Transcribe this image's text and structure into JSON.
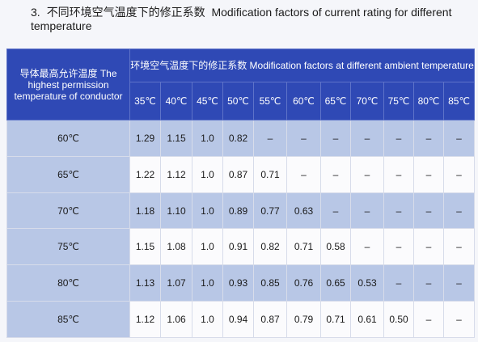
{
  "heading": {
    "number": "3.",
    "zh": "不同环境空气温度下的修正系数",
    "en": "Modification factors of current rating for different temperature"
  },
  "table": {
    "corner_header": "导体最高允许温度 The highest permission temperature of conductor",
    "group_header": "环境空气温度下的修正系数 Modification factors at different ambient temperature",
    "ambient_temps": [
      "35℃",
      "40℃",
      "45℃",
      "50℃",
      "55℃",
      "60℃",
      "65℃",
      "70℃",
      "75℃",
      "80℃",
      "85℃"
    ],
    "rows": [
      {
        "conductor": "60℃",
        "factors": [
          "1.29",
          "1.15",
          "1.0",
          "0.82",
          "–",
          "–",
          "–",
          "–",
          "–",
          "–",
          "–"
        ]
      },
      {
        "conductor": "65℃",
        "factors": [
          "1.22",
          "1.12",
          "1.0",
          "0.87",
          "0.71",
          "–",
          "–",
          "–",
          "–",
          "–",
          "–"
        ]
      },
      {
        "conductor": "70℃",
        "factors": [
          "1.18",
          "1.10",
          "1.0",
          "0.89",
          "0.77",
          "0.63",
          "–",
          "–",
          "–",
          "–",
          "–"
        ]
      },
      {
        "conductor": "75℃",
        "factors": [
          "1.15",
          "1.08",
          "1.0",
          "0.91",
          "0.82",
          "0.71",
          "0.58",
          "–",
          "–",
          "–",
          "–"
        ]
      },
      {
        "conductor": "80℃",
        "factors": [
          "1.13",
          "1.07",
          "1.0",
          "0.93",
          "0.85",
          "0.76",
          "0.65",
          "0.53",
          "–",
          "–",
          "–"
        ]
      },
      {
        "conductor": "85℃",
        "factors": [
          "1.12",
          "1.06",
          "1.0",
          "0.94",
          "0.87",
          "0.79",
          "0.71",
          "0.61",
          "0.50",
          "–",
          "–"
        ]
      }
    ]
  }
}
